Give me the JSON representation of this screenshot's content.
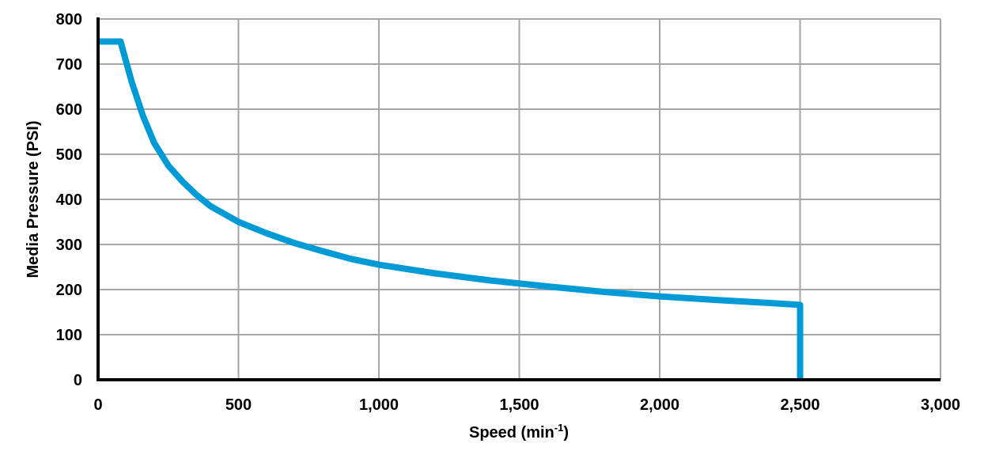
{
  "chart_data": {
    "type": "line",
    "title": "",
    "xlabel": "Speed (min",
    "xlabel_sup": "-1",
    "xlabel_end": ")",
    "ylabel": "Media Pressure (PSI)",
    "xlim": [
      0,
      3000
    ],
    "ylim": [
      0,
      800
    ],
    "grid": true,
    "x_ticks": [
      0,
      500,
      1000,
      1500,
      2000,
      2500,
      3000
    ],
    "x_tick_labels": [
      "0",
      "500",
      "1,000",
      "1,500",
      "2,000",
      "2,500",
      "3,000"
    ],
    "y_ticks": [
      0,
      100,
      200,
      300,
      400,
      500,
      600,
      700,
      800
    ],
    "y_tick_labels": [
      "0",
      "100",
      "200",
      "300",
      "400",
      "500",
      "600",
      "700",
      "800"
    ],
    "series": [
      {
        "color": "#009ad6",
        "x": [
          0,
          80,
          120,
          160,
          200,
          250,
          300,
          350,
          400,
          500,
          600,
          700,
          800,
          900,
          1000,
          1200,
          1400,
          1600,
          1800,
          2000,
          2200,
          2400,
          2500,
          2500
        ],
        "y": [
          750,
          750,
          660,
          585,
          525,
          475,
          440,
          410,
          385,
          350,
          325,
          303,
          285,
          268,
          255,
          236,
          220,
          207,
          195,
          185,
          177,
          170,
          166,
          0
        ]
      }
    ]
  }
}
